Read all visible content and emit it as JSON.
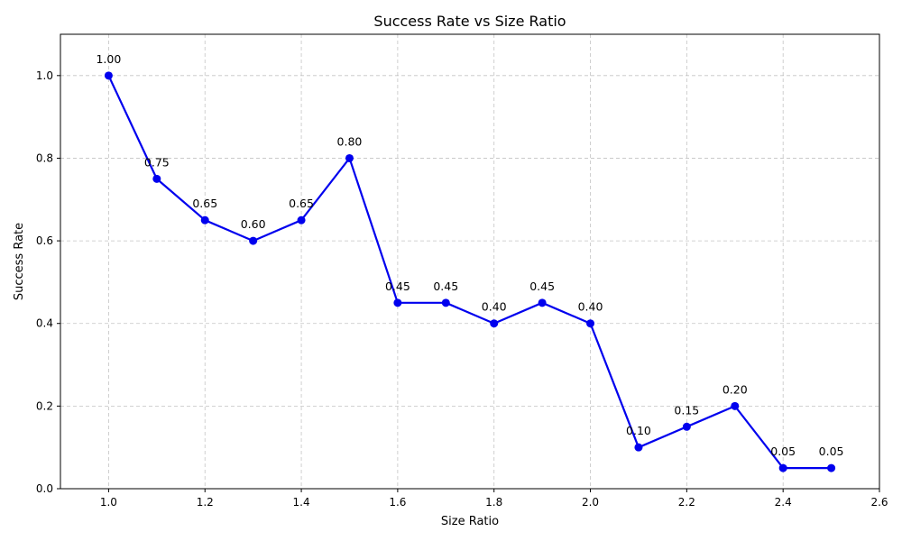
{
  "chart_data": {
    "type": "line",
    "title": "Success Rate vs Size Ratio",
    "xlabel": "Size Ratio",
    "ylabel": "Success Rate",
    "xlim": [
      0.9,
      2.6
    ],
    "ylim": [
      0.0,
      1.1
    ],
    "xticks": [
      1.0,
      1.2,
      1.4,
      1.6,
      1.8,
      2.0,
      2.2,
      2.4,
      2.6
    ],
    "xtick_labels": [
      "1.0",
      "1.2",
      "1.4",
      "1.6",
      "1.8",
      "2.0",
      "2.2",
      "2.4",
      "2.6"
    ],
    "yticks": [
      0.0,
      0.2,
      0.4,
      0.6,
      0.8,
      1.0
    ],
    "ytick_labels": [
      "0.0",
      "0.2",
      "0.4",
      "0.6",
      "0.8",
      "1.0"
    ],
    "grid": true,
    "series": [
      {
        "color": "#0000ee",
        "marker": "circle",
        "x": [
          1.0,
          1.1,
          1.2,
          1.3,
          1.4,
          1.5,
          1.6,
          1.7,
          1.8,
          1.9,
          2.0,
          2.1,
          2.2,
          2.3,
          2.4,
          2.5
        ],
        "y": [
          1.0,
          0.75,
          0.65,
          0.6,
          0.65,
          0.8,
          0.45,
          0.45,
          0.4,
          0.45,
          0.4,
          0.1,
          0.15,
          0.2,
          0.05,
          0.05
        ],
        "labels": [
          "1.00",
          "0.75",
          "0.65",
          "0.60",
          "0.65",
          "0.80",
          "0.45",
          "0.45",
          "0.40",
          "0.45",
          "0.40",
          "0.10",
          "0.15",
          "0.20",
          "0.05",
          "0.05"
        ]
      }
    ]
  }
}
